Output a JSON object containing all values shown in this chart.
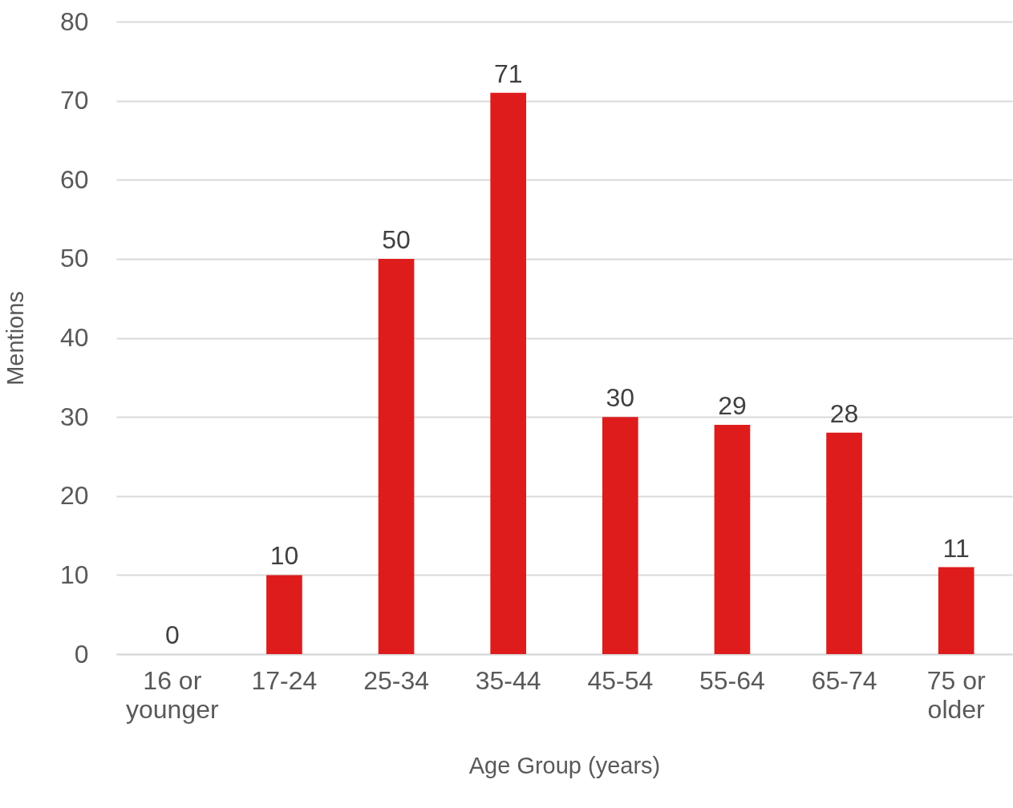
{
  "chart_data": {
    "type": "bar",
    "xlabel": "Age Group (years)",
    "ylabel": "Mentions",
    "categories": [
      "16 or younger",
      "17-24",
      "25-34",
      "35-44",
      "45-54",
      "55-64",
      "65-74",
      "75 or older"
    ],
    "values": [
      0,
      10,
      50,
      71,
      30,
      29,
      28,
      11
    ],
    "color": "#de1c1c",
    "ylim": [
      0,
      80
    ],
    "yticks": [
      0,
      10,
      20,
      30,
      40,
      50,
      60,
      70,
      80
    ],
    "grid": "y",
    "data_labels": true
  }
}
